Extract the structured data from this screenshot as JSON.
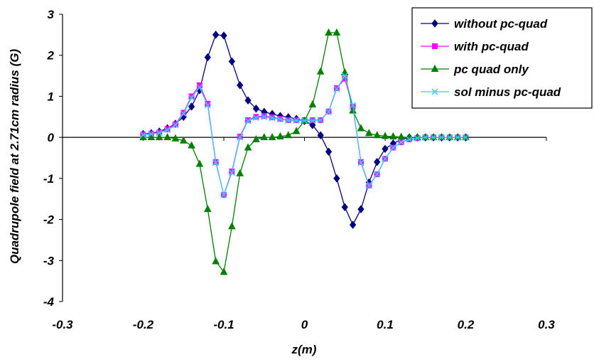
{
  "chart_data": {
    "type": "line",
    "title": "",
    "xlabel": "z(m)",
    "ylabel": "Quadrupole field at 2.71cm radius (G)",
    "xlim": [
      -0.3,
      0.3
    ],
    "ylim": [
      -4,
      3
    ],
    "x_ticks": [
      -0.3,
      -0.2,
      -0.1,
      0,
      0.1,
      0.2,
      0.3
    ],
    "x_tick_labels": [
      "-0.3",
      "-0.2",
      "-0.1",
      "0",
      "0.1",
      "0.2",
      "0.3"
    ],
    "y_ticks": [
      -4,
      -3,
      -2,
      -1,
      0,
      1,
      2,
      3
    ],
    "y_tick_labels": [
      "-4",
      "-3",
      "-2",
      "-1",
      "0",
      "1",
      "2",
      "3"
    ],
    "grid": false,
    "legend_position": "top-right",
    "x": [
      -0.2,
      -0.19,
      -0.18,
      -0.17,
      -0.16,
      -0.15,
      -0.14,
      -0.13,
      -0.12,
      -0.11,
      -0.1,
      -0.09,
      -0.08,
      -0.07,
      -0.06,
      -0.05,
      -0.04,
      -0.03,
      -0.02,
      -0.01,
      0,
      0.01,
      0.02,
      0.03,
      0.04,
      0.05,
      0.06,
      0.07,
      0.08,
      0.09,
      0.1,
      0.11,
      0.12,
      0.13,
      0.14,
      0.15,
      0.16,
      0.17,
      0.18,
      0.19,
      0.2
    ],
    "series": [
      {
        "name": "without pc-quad",
        "color": "#000080",
        "marker": "diamond",
        "values": [
          0.08,
          0.1,
          0.14,
          0.22,
          0.33,
          0.5,
          0.75,
          1.15,
          1.95,
          2.5,
          2.48,
          1.85,
          1.27,
          0.9,
          0.7,
          0.62,
          0.57,
          0.52,
          0.49,
          0.45,
          0.4,
          0.3,
          0.05,
          -0.35,
          -1.0,
          -1.7,
          -2.13,
          -1.75,
          -1.1,
          -0.6,
          -0.28,
          -0.15,
          -0.05,
          0.0,
          0.0,
          0.0,
          0.0,
          0.0,
          0.0,
          0.0,
          0.0
        ]
      },
      {
        "name": "with pc-quad",
        "color": "#ff00ff",
        "marker": "square",
        "values": [
          0.07,
          0.09,
          0.12,
          0.2,
          0.32,
          0.6,
          1.0,
          1.27,
          0.82,
          -0.6,
          -1.4,
          -0.83,
          0.02,
          0.42,
          0.5,
          0.52,
          0.49,
          0.45,
          0.42,
          0.42,
          0.42,
          0.42,
          0.42,
          0.63,
          1.2,
          1.43,
          0.75,
          -0.6,
          -1.17,
          -0.9,
          -0.52,
          -0.25,
          -0.12,
          -0.05,
          -0.02,
          0.0,
          0.0,
          0.0,
          0.0,
          0.0,
          0.0
        ]
      },
      {
        "name": "pc quad only",
        "color": "#008000",
        "marker": "triangle",
        "values": [
          0.0,
          0.0,
          0.0,
          0.0,
          -0.03,
          -0.08,
          -0.2,
          -0.65,
          -1.75,
          -3.02,
          -3.28,
          -2.17,
          -0.88,
          -0.25,
          -0.05,
          0.0,
          0.0,
          0.02,
          0.05,
          0.15,
          0.4,
          0.8,
          1.6,
          2.55,
          2.55,
          1.58,
          0.65,
          0.22,
          0.1,
          0.05,
          0.03,
          0.02,
          0.01,
          0.0,
          0.0,
          0.0,
          0.0,
          0.0,
          0.0,
          0.0,
          0.0
        ]
      },
      {
        "name": "sol minus pc-quad",
        "color": "#33ccff",
        "marker": "x",
        "values": [
          0.06,
          0.08,
          0.11,
          0.18,
          0.3,
          0.58,
          0.97,
          1.22,
          0.78,
          -0.62,
          -1.4,
          -0.86,
          0.0,
          0.4,
          0.48,
          0.5,
          0.47,
          0.44,
          0.41,
          0.41,
          0.41,
          0.41,
          0.42,
          0.62,
          1.18,
          1.5,
          0.78,
          -0.62,
          -1.18,
          -0.9,
          -0.52,
          -0.25,
          -0.12,
          -0.05,
          -0.02,
          0.0,
          0.0,
          0.0,
          0.0,
          0.0,
          0.0
        ]
      }
    ]
  }
}
